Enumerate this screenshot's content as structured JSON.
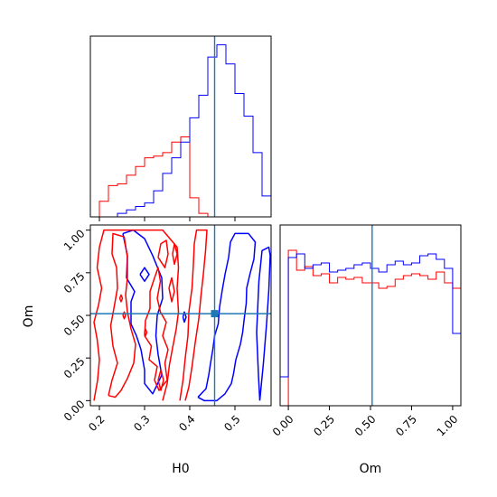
{
  "colors": {
    "red": "#ff0000",
    "blue": "#0000ff",
    "truth": "#1f77b4"
  },
  "chart_data": [
    {
      "panel": "H0 marginal histogram",
      "type": "histogram",
      "x": [
        0.18,
        0.2,
        0.22,
        0.24,
        0.26,
        0.28,
        0.3,
        0.32,
        0.34,
        0.36,
        0.38,
        0.4,
        0.42,
        0.44,
        0.46,
        0.48,
        0.5,
        0.52,
        0.54,
        0.56,
        0.58
      ],
      "xlim": [
        0.18,
        0.58
      ],
      "xticks": [
        "0.2",
        "0.3",
        "0.4",
        "0.5"
      ],
      "truth": 0.455,
      "series": [
        {
          "color": "red",
          "values": [
            0,
            0.09,
            0.18,
            0.19,
            0.24,
            0.29,
            0.34,
            0.35,
            0.37,
            0.43,
            0.46,
            0.11,
            0.02,
            0,
            0,
            0,
            0,
            0,
            0,
            0
          ]
        },
        {
          "color": "blue",
          "values": [
            0,
            0,
            0,
            0.02,
            0.04,
            0.06,
            0.08,
            0.15,
            0.25,
            0.34,
            0.43,
            0.57,
            0.7,
            0.92,
            0.99,
            0.88,
            0.71,
            0.58,
            0.37,
            0.12
          ]
        }
      ]
    },
    {
      "panel": "Om marginal histogram",
      "type": "histogram",
      "x": [
        -0.05,
        0,
        0.05,
        0.1,
        0.15,
        0.2,
        0.25,
        0.3,
        0.35,
        0.4,
        0.45,
        0.5,
        0.55,
        0.6,
        0.65,
        0.7,
        0.75,
        0.8,
        0.85,
        0.9,
        0.95,
        1.0,
        1.05
      ],
      "xlim": [
        -0.05,
        1.05
      ],
      "xticks": [
        "0.00",
        "0.25",
        "0.50",
        "0.75",
        "1.00"
      ],
      "xlabel": "Om",
      "truth": 0.51,
      "series": [
        {
          "color": "red",
          "values": [
            0,
            0.86,
            0.75,
            0.77,
            0.72,
            0.73,
            0.68,
            0.71,
            0.7,
            0.71,
            0.68,
            0.68,
            0.65,
            0.66,
            0.7,
            0.72,
            0.73,
            0.72,
            0.7,
            0.74,
            0.68,
            0.65
          ]
        },
        {
          "color": "blue",
          "values": [
            0.16,
            0.82,
            0.84,
            0.76,
            0.78,
            0.79,
            0.74,
            0.75,
            0.76,
            0.78,
            0.79,
            0.76,
            0.74,
            0.78,
            0.8,
            0.78,
            0.79,
            0.83,
            0.84,
            0.81,
            0.76,
            0.4
          ]
        }
      ]
    },
    {
      "panel": "H0 vs Om contour",
      "type": "contour",
      "xlim": [
        0.18,
        0.58
      ],
      "ylim": [
        -0.03,
        1.03
      ],
      "xticks": [
        "0.2",
        "0.3",
        "0.4",
        "0.5"
      ],
      "yticks": [
        "0.00",
        "0.25",
        "0.50",
        "0.75",
        "1.00"
      ],
      "xlabel": "H0",
      "ylabel": "Om",
      "truth": [
        0.455,
        0.51
      ],
      "series": [
        {
          "color": "blue",
          "contours": [
            [
              [
                0.418,
                0.02
              ],
              [
                0.436,
                0.07
              ],
              [
                0.442,
                0.15
              ],
              [
                0.446,
                0.22
              ],
              [
                0.451,
                0.3
              ],
              [
                0.455,
                0.38
              ],
              [
                0.463,
                0.45
              ],
              [
                0.466,
                0.55
              ],
              [
                0.472,
                0.65
              ],
              [
                0.478,
                0.74
              ],
              [
                0.486,
                0.84
              ],
              [
                0.49,
                0.93
              ],
              [
                0.5,
                0.98
              ],
              [
                0.53,
                0.98
              ],
              [
                0.545,
                0.93
              ],
              [
                0.542,
                0.83
              ],
              [
                0.533,
                0.74
              ],
              [
                0.526,
                0.66
              ],
              [
                0.525,
                0.57
              ],
              [
                0.521,
                0.49
              ],
              [
                0.517,
                0.4
              ],
              [
                0.512,
                0.33
              ],
              [
                0.502,
                0.24
              ],
              [
                0.497,
                0.16
              ],
              [
                0.492,
                0.1
              ],
              [
                0.478,
                0.04
              ],
              [
                0.46,
                0.0
              ],
              [
                0.432,
                0.0
              ],
              [
                0.418,
                0.02
              ]
            ],
            [
              [
                0.555,
                0.0
              ],
              [
                0.563,
                0.22
              ],
              [
                0.57,
                0.45
              ],
              [
                0.575,
                0.65
              ],
              [
                0.578,
                0.85
              ],
              [
                0.575,
                0.9
              ],
              [
                0.56,
                0.88
              ],
              [
                0.553,
                0.7
              ],
              [
                0.548,
                0.4
              ],
              [
                0.552,
                0.15
              ],
              [
                0.555,
                0.0
              ]
            ],
            [
              [
                0.252,
                0.98
              ],
              [
                0.262,
                0.85
              ],
              [
                0.26,
                0.72
              ],
              [
                0.278,
                0.64
              ],
              [
                0.27,
                0.58
              ],
              [
                0.27,
                0.45
              ],
              [
                0.282,
                0.38
              ],
              [
                0.292,
                0.3
              ],
              [
                0.3,
                0.18
              ],
              [
                0.3,
                0.1
              ],
              [
                0.318,
                0.04
              ],
              [
                0.338,
                0.15
              ],
              [
                0.33,
                0.27
              ],
              [
                0.325,
                0.38
              ],
              [
                0.328,
                0.5
              ],
              [
                0.34,
                0.6
              ],
              [
                0.338,
                0.72
              ],
              [
                0.318,
                0.85
              ],
              [
                0.3,
                0.95
              ],
              [
                0.275,
                1.0
              ],
              [
                0.252,
                0.98
              ]
            ],
            [
              [
                0.29,
                0.74
              ],
              [
                0.3,
                0.7
              ],
              [
                0.31,
                0.74
              ],
              [
                0.3,
                0.78
              ],
              [
                0.29,
                0.74
              ]
            ],
            [
              [
                0.385,
                0.49
              ],
              [
                0.388,
                0.46
              ],
              [
                0.392,
                0.49
              ],
              [
                0.388,
                0.52
              ],
              [
                0.385,
                0.49
              ]
            ]
          ]
        },
        {
          "color": "red",
          "contours": [
            [
              [
                0.188,
                0.0
              ],
              [
                0.196,
                0.12
              ],
              [
                0.2,
                0.24
              ],
              [
                0.195,
                0.36
              ],
              [
                0.188,
                0.46
              ],
              [
                0.198,
                0.56
              ],
              [
                0.205,
                0.66
              ],
              [
                0.195,
                0.78
              ],
              [
                0.2,
                0.9
              ],
              [
                0.21,
                1.0
              ],
              [
                0.34,
                1.0
              ],
              [
                0.372,
                0.9
              ],
              [
                0.375,
                0.78
              ],
              [
                0.372,
                0.66
              ],
              [
                0.375,
                0.52
              ],
              [
                0.37,
                0.42
              ],
              [
                0.362,
                0.31
              ],
              [
                0.355,
                0.21
              ],
              [
                0.35,
                0.1
              ],
              [
                0.34,
                0.0
              ]
            ],
            [
              [
                0.22,
                0.03
              ],
              [
                0.228,
                0.12
              ],
              [
                0.24,
                0.22
              ],
              [
                0.23,
                0.32
              ],
              [
                0.225,
                0.44
              ],
              [
                0.232,
                0.54
              ],
              [
                0.24,
                0.66
              ],
              [
                0.238,
                0.78
              ],
              [
                0.228,
                0.86
              ],
              [
                0.23,
                0.98
              ],
              [
                0.255,
                0.96
              ],
              [
                0.262,
                0.84
              ],
              [
                0.262,
                0.72
              ],
              [
                0.258,
                0.62
              ],
              [
                0.262,
                0.52
              ],
              [
                0.27,
                0.42
              ],
              [
                0.28,
                0.33
              ],
              [
                0.276,
                0.22
              ],
              [
                0.262,
                0.13
              ],
              [
                0.248,
                0.06
              ],
              [
                0.235,
                0.02
              ],
              [
                0.22,
                0.03
              ]
            ],
            [
              [
                0.378,
                0.0
              ],
              [
                0.385,
                0.12
              ],
              [
                0.39,
                0.25
              ],
              [
                0.396,
                0.38
              ],
              [
                0.398,
                0.52
              ],
              [
                0.405,
                0.66
              ],
              [
                0.408,
                0.8
              ],
              [
                0.41,
                0.92
              ],
              [
                0.415,
                1.0
              ],
              [
                0.438,
                1.0
              ],
              [
                0.435,
                0.88
              ],
              [
                0.43,
                0.74
              ],
              [
                0.425,
                0.62
              ],
              [
                0.42,
                0.48
              ],
              [
                0.412,
                0.34
              ],
              [
                0.405,
                0.2
              ],
              [
                0.398,
                0.08
              ],
              [
                0.39,
                0.0
              ]
            ],
            [
              [
                0.3,
                0.38
              ],
              [
                0.315,
                0.32
              ],
              [
                0.31,
                0.24
              ],
              [
                0.328,
                0.2
              ],
              [
                0.322,
                0.12
              ],
              [
                0.332,
                0.06
              ],
              [
                0.35,
                0.12
              ],
              [
                0.345,
                0.22
              ],
              [
                0.352,
                0.3
              ],
              [
                0.34,
                0.38
              ],
              [
                0.348,
                0.46
              ],
              [
                0.335,
                0.52
              ],
              [
                0.328,
                0.6
              ],
              [
                0.335,
                0.7
              ],
              [
                0.33,
                0.78
              ],
              [
                0.322,
                0.72
              ],
              [
                0.312,
                0.64
              ],
              [
                0.312,
                0.54
              ],
              [
                0.302,
                0.47
              ],
              [
                0.3,
                0.38
              ]
            ],
            [
              [
                0.33,
                0.84
              ],
              [
                0.345,
                0.78
              ],
              [
                0.352,
                0.86
              ],
              [
                0.348,
                0.94
              ],
              [
                0.336,
                0.92
              ],
              [
                0.33,
                0.84
              ]
            ],
            [
              [
                0.354,
                0.66
              ],
              [
                0.36,
                0.58
              ],
              [
                0.366,
                0.64
              ],
              [
                0.36,
                0.72
              ],
              [
                0.354,
                0.66
              ]
            ],
            [
              [
                0.362,
                0.86
              ],
              [
                0.366,
                0.8
              ],
              [
                0.372,
                0.86
              ],
              [
                0.366,
                0.92
              ],
              [
                0.362,
                0.86
              ]
            ],
            [
              [
                0.33,
                0.12
              ],
              [
                0.336,
                0.06
              ],
              [
                0.342,
                0.12
              ],
              [
                0.336,
                0.18
              ],
              [
                0.33,
                0.12
              ]
            ],
            [
              [
                0.245,
                0.6
              ],
              [
                0.248,
                0.58
              ],
              [
                0.251,
                0.6
              ],
              [
                0.248,
                0.62
              ],
              [
                0.245,
                0.6
              ]
            ],
            [
              [
                0.3,
                0.4
              ],
              [
                0.302,
                0.38
              ],
              [
                0.305,
                0.4
              ],
              [
                0.302,
                0.42
              ],
              [
                0.3,
                0.4
              ]
            ],
            [
              [
                0.252,
                0.5
              ],
              [
                0.255,
                0.48
              ],
              [
                0.258,
                0.5
              ],
              [
                0.255,
                0.52
              ],
              [
                0.252,
                0.5
              ]
            ]
          ]
        }
      ]
    }
  ]
}
